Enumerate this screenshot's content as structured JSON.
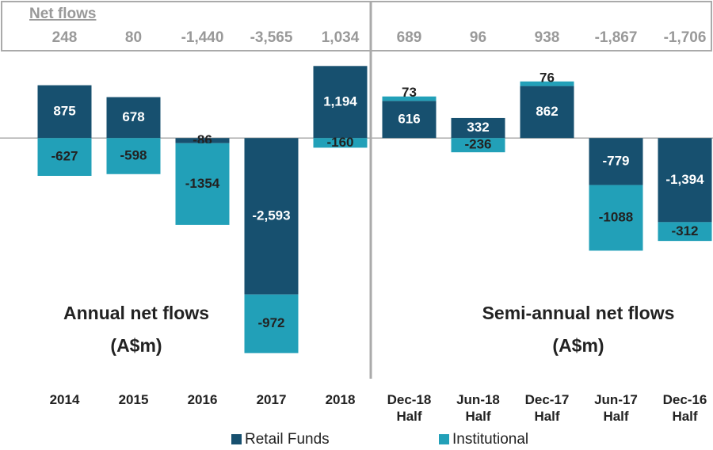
{
  "chart_data": {
    "type": "stacked_bar",
    "categories": [
      "2014",
      "2015",
      "2016",
      "2017",
      "2018",
      "Dec-18 Half",
      "Jun-18 Half",
      "Dec-17 Half",
      "Jun-17 Half",
      "Dec-16 Half"
    ],
    "series": [
      {
        "name": "Retail Funds",
        "color": "#17506f",
        "values": [
          875,
          678,
          -86,
          -2593,
          1194,
          616,
          332,
          862,
          -779,
          -1394
        ],
        "value_labels": [
          "875",
          "678",
          "-86",
          "-2,593",
          "1,194",
          "616",
          "332",
          "862",
          "-779",
          "-1,394"
        ]
      },
      {
        "name": "Institutional",
        "color": "#22a0b8",
        "values": [
          -627,
          -598,
          -1354,
          -972,
          -160,
          73,
          -236,
          76,
          -1088,
          -312
        ]
      }
    ],
    "net_flows": {
      "title": "Net flows",
      "values": [
        248,
        80,
        -1440,
        -3565,
        1034,
        689,
        96,
        938,
        -1867,
        -1706
      ],
      "value_labels": [
        "248",
        "80",
        "-1,440",
        "-3,565",
        "1,034",
        "689",
        "96",
        "938",
        "-1,867",
        "-1,706"
      ]
    },
    "annotations": [
      "Annual net flows",
      "(A$m)",
      "Semi-annual net flows",
      "(A$m)"
    ],
    "ylim": [
      -3700,
      1500
    ]
  }
}
